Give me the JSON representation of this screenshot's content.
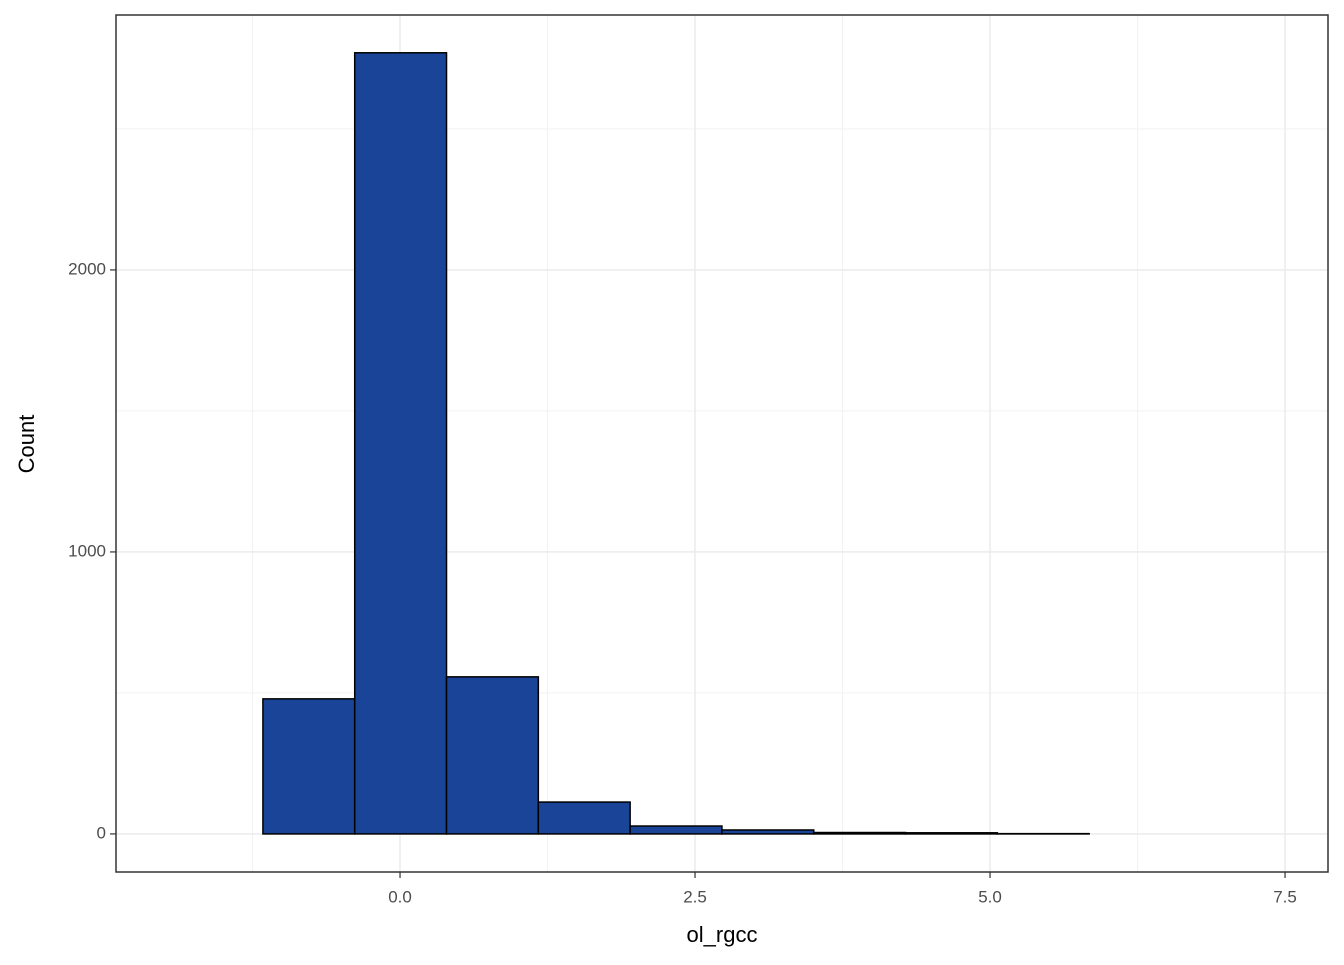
{
  "chart_data": {
    "type": "histogram",
    "bins": [
      -1.94,
      -1.162,
      -0.384,
      0.394,
      1.172,
      1.95,
      2.728,
      3.506,
      4.284,
      5.062,
      5.84,
      6.618,
      7.396
    ],
    "values": [
      0,
      479,
      2770,
      557,
      113,
      28,
      14,
      5,
      4,
      1,
      0,
      0
    ],
    "color": "#1a4498",
    "edgecolor": "#000000",
    "xlabel": "ol_rgcc",
    "ylabel": "Count",
    "xlim": [
      -2.407,
      7.864
    ],
    "ylim": [
      -135,
      2904
    ],
    "xticks": [
      {
        "value": 0,
        "label": "0.0"
      },
      {
        "value": 2.5,
        "label": "2.5"
      },
      {
        "value": 5,
        "label": "5.0"
      },
      {
        "value": 7.5,
        "label": "7.5"
      }
    ],
    "yticks": [
      0,
      1000,
      2000
    ],
    "grid": true
  }
}
